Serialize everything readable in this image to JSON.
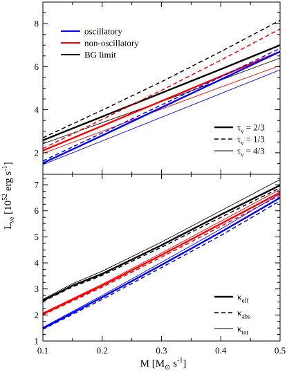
{
  "chart_data": [
    {
      "type": "line",
      "panel": "top",
      "xlim": [
        0.1,
        0.5
      ],
      "ylim": [
        1,
        9
      ],
      "xticks": [],
      "yticks": [
        2,
        4,
        6,
        8
      ],
      "legend_color": {
        "placement": "top-left",
        "entries": [
          {
            "label": "oscillatory",
            "color": "#0000ff"
          },
          {
            "label": "non-oscillatory",
            "color": "#ff0000"
          },
          {
            "label": "BG limit",
            "color": "#000000"
          }
        ]
      },
      "legend_style": {
        "placement": "center-right",
        "entries": [
          {
            "base": "τ",
            "sub": "ν",
            "suffix": " = 2/3",
            "dash": "solid",
            "weight": "thick"
          },
          {
            "base": "τ",
            "sub": "ν",
            "suffix": " = 1/3",
            "dash": "dashed",
            "weight": "normal"
          },
          {
            "base": "τ",
            "sub": "ν",
            "suffix": " = 4/3",
            "dash": "solid",
            "weight": "thin"
          }
        ]
      },
      "series": [
        {
          "color": "#000000",
          "dash": "dashed",
          "weight": "normal",
          "x": [
            0.1,
            0.2,
            0.3,
            0.4,
            0.5
          ],
          "y": [
            2.7,
            3.98,
            5.3,
            6.7,
            8.15
          ]
        },
        {
          "color": "#000000",
          "dash": "solid",
          "weight": "thick",
          "x": [
            0.1,
            0.2,
            0.3,
            0.4,
            0.5
          ],
          "y": [
            2.58,
            3.68,
            4.78,
            5.88,
            7.0
          ]
        },
        {
          "color": "#000000",
          "dash": "solid",
          "weight": "thin",
          "x": [
            0.1,
            0.2,
            0.3,
            0.4,
            0.5
          ],
          "y": [
            2.42,
            3.4,
            4.38,
            5.38,
            6.4
          ]
        },
        {
          "color": "#ff0000",
          "dash": "dashed",
          "weight": "normal",
          "x": [
            0.1,
            0.2,
            0.3,
            0.4,
            0.5
          ],
          "y": [
            2.2,
            3.55,
            4.9,
            6.3,
            7.75
          ]
        },
        {
          "color": "#ff0000",
          "dash": "solid",
          "weight": "thick",
          "x": [
            0.1,
            0.2,
            0.3,
            0.4,
            0.5
          ],
          "y": [
            2.1,
            3.25,
            4.4,
            5.55,
            6.7
          ]
        },
        {
          "color": "#ff0000",
          "dash": "solid",
          "weight": "thin",
          "x": [
            0.1,
            0.2,
            0.3,
            0.4,
            0.5
          ],
          "y": [
            1.97,
            3.0,
            4.03,
            5.05,
            6.05
          ]
        },
        {
          "color": "#0000ff",
          "dash": "dashed",
          "weight": "normal",
          "x": [
            0.1,
            0.2,
            0.3,
            0.4,
            0.5
          ],
          "y": [
            1.62,
            2.92,
            4.22,
            5.52,
            6.85
          ]
        },
        {
          "color": "#0000ff",
          "dash": "solid",
          "weight": "thick",
          "x": [
            0.1,
            0.2,
            0.3,
            0.4,
            0.5
          ],
          "y": [
            1.52,
            2.8,
            4.1,
            5.4,
            6.7
          ]
        },
        {
          "color": "#0000ff",
          "dash": "solid",
          "weight": "thin",
          "x": [
            0.1,
            0.2,
            0.3,
            0.4,
            0.5
          ],
          "y": [
            1.45,
            2.55,
            3.65,
            4.75,
            5.85
          ]
        }
      ]
    },
    {
      "type": "line",
      "panel": "bottom",
      "xlim": [
        0.1,
        0.5
      ],
      "ylim": [
        1,
        7.4
      ],
      "xticks": [
        0.1,
        0.2,
        0.3,
        0.4,
        0.5
      ],
      "yticks": [
        1,
        2,
        3,
        4,
        5,
        6,
        7
      ],
      "legend_style": {
        "placement": "bottom-right",
        "entries": [
          {
            "base": "κ",
            "sub": "eff",
            "suffix": "",
            "dash": "solid",
            "weight": "thick"
          },
          {
            "base": "κ",
            "sub": "abs",
            "suffix": "",
            "dash": "dashed",
            "weight": "normal"
          },
          {
            "base": "κ",
            "sub": "tot",
            "suffix": "",
            "dash": "solid",
            "weight": "thin"
          }
        ]
      },
      "series": [
        {
          "color": "#000000",
          "dash": "solid",
          "weight": "thin",
          "x": [
            0.1,
            0.15,
            0.2,
            0.3,
            0.4,
            0.5
          ],
          "y": [
            2.6,
            3.2,
            3.68,
            4.8,
            6.0,
            7.2
          ]
        },
        {
          "color": "#000000",
          "dash": "solid",
          "weight": "thick",
          "x": [
            0.1,
            0.15,
            0.2,
            0.3,
            0.4,
            0.5
          ],
          "y": [
            2.55,
            3.13,
            3.58,
            4.68,
            5.85,
            6.98
          ]
        },
        {
          "color": "#000000",
          "dash": "dashed",
          "weight": "normal",
          "x": [
            0.1,
            0.15,
            0.2,
            0.3,
            0.4,
            0.5
          ],
          "y": [
            2.52,
            3.08,
            3.52,
            4.6,
            5.75,
            6.88
          ]
        },
        {
          "color": "#ff0000",
          "dash": "solid",
          "weight": "thin",
          "x": [
            0.1,
            0.2,
            0.3,
            0.4,
            0.5
          ],
          "y": [
            2.08,
            3.18,
            4.38,
            5.6,
            6.82
          ]
        },
        {
          "color": "#ff0000",
          "dash": "solid",
          "weight": "thick",
          "x": [
            0.1,
            0.2,
            0.3,
            0.4,
            0.5
          ],
          "y": [
            2.04,
            3.13,
            4.3,
            5.5,
            6.7
          ]
        },
        {
          "color": "#ff0000",
          "dash": "dashed",
          "weight": "normal",
          "x": [
            0.1,
            0.2,
            0.3,
            0.4,
            0.5
          ],
          "y": [
            2.0,
            3.07,
            4.22,
            5.4,
            6.6
          ]
        },
        {
          "color": "#0000ff",
          "dash": "solid",
          "weight": "thin",
          "x": [
            0.1,
            0.2,
            0.3,
            0.4,
            0.5
          ],
          "y": [
            1.52,
            2.75,
            4.02,
            5.3,
            6.65
          ]
        },
        {
          "color": "#0000ff",
          "dash": "solid",
          "weight": "thick",
          "x": [
            0.1,
            0.2,
            0.3,
            0.4,
            0.5
          ],
          "y": [
            1.48,
            2.68,
            3.92,
            5.18,
            6.5
          ]
        },
        {
          "color": "#0000ff",
          "dash": "dashed",
          "weight": "normal",
          "x": [
            0.1,
            0.2,
            0.3,
            0.4,
            0.5
          ],
          "y": [
            1.45,
            2.6,
            3.82,
            5.05,
            6.38
          ]
        }
      ]
    }
  ],
  "axes_text": {
    "y_main": "L",
    "y_sub": "νe",
    "y_open": " [10",
    "y_exp": "52",
    "y_unit": " erg s",
    "y_unit_exp": "-1",
    "y_close": "]",
    "x_main": "M [M",
    "x_sub": "⊙",
    "x_unit": " s",
    "x_unit_exp": "-1",
    "x_close": "]"
  }
}
